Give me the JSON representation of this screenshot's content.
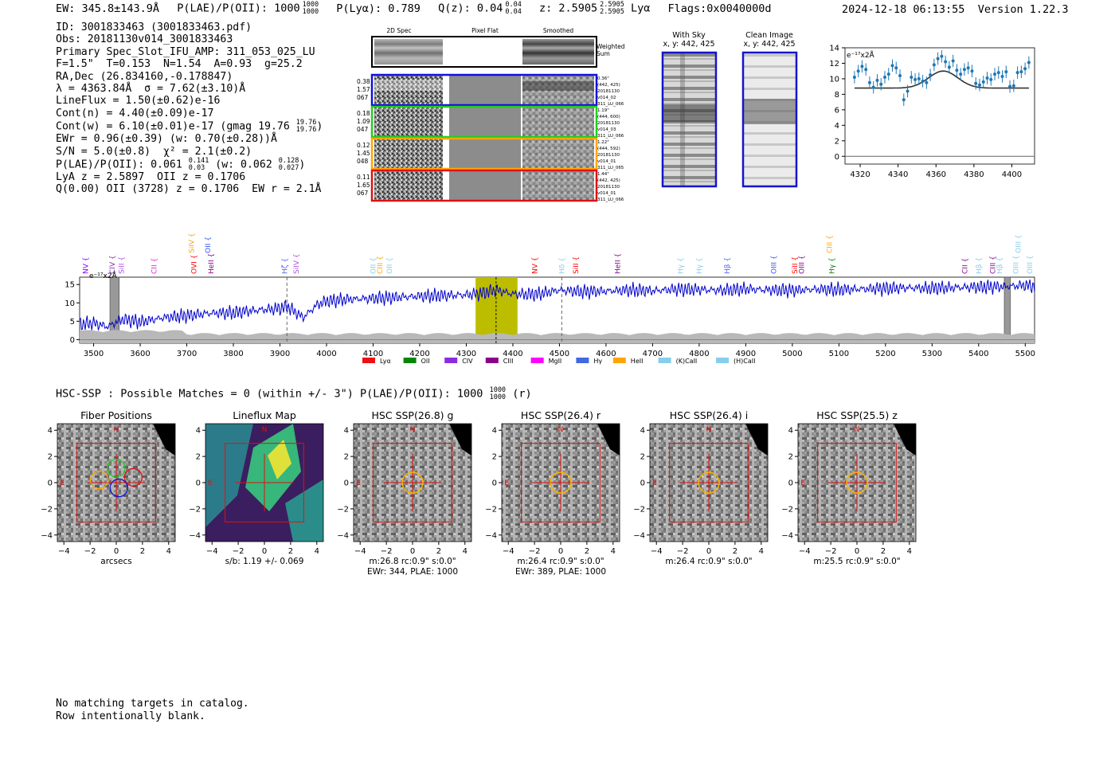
{
  "header": {
    "ew": "EW: 345.8±143.9Å",
    "plae": "P(LAE)/P(OII): 1000",
    "plae_hi": "1000",
    "plae_lo": "1000",
    "plya": "P(Lyα): 0.789",
    "qz": "Q(z): 0.04",
    "qz_hi": "0.04",
    "qz_lo": "0.04",
    "z": "z: 2.5905",
    "z_hi": "2.5905",
    "z_lo": "2.5905",
    "z_line": "Lyα",
    "flags": "Flags:0x0040000d",
    "timestamp": "2024-12-18 06:13:55",
    "version": "Version 1.22.3"
  },
  "info": {
    "id": "ID: 3001833463 (3001833463.pdf)",
    "obs": "Obs: 20181130v014_3001833463",
    "primary": "Primary Spec_Slot_IFU_AMP: 311_053_025_LU",
    "fit": "F=1.5\"  T=0.153  N=1.54  A=0.93  g=25.2",
    "radec": "RA,Dec (26.834160,-0.178847)",
    "lambda": "λ = 4363.84Å  σ = 7.62(±3.10)Å",
    "lineflux": "LineFlux = 1.50(±0.62)e-16",
    "contn": "Cont(n) = 4.40(±0.09)e-17",
    "contw": "Cont(w) = 6.10(±0.01)e-17 (gmag 19.76",
    "contw_hi": "19.76",
    "contw_lo": "19.76",
    "contw_end": ")",
    "ewr": "EWr = 0.96(±0.39) (w: 0.70(±0.28))Å",
    "sn": "S/N = 5.0(±0.8)  χ² = 2.1(±0.2)",
    "plae2": "P(LAE)/P(OII): 0.061",
    "plae2_hi": "0.141",
    "plae2_lo": "0.03",
    "plae2_w": "(w: 0.062",
    "plae2_w_hi": "0.128",
    "plae2_w_lo": "0.027",
    "plae2_end": ")",
    "lya": "LyA z = 2.5897  OII z = 0.1706",
    "q": "Q(0.00) OII (3728) z = 0.1706  EW r = 2.1Å"
  },
  "cutouts": {
    "col_titles": [
      "2D Spec",
      "Pixel Flat",
      "Smoothed"
    ],
    "weighted": [
      "Weighted",
      "Sum"
    ],
    "rows": [
      {
        "left": [
          "0.38",
          "1.57",
          "067"
        ],
        "right": [
          "0.36\"",
          "(442, 425)",
          "20181130",
          "v014_02",
          "311_LU_066"
        ],
        "color": "#1010dd"
      },
      {
        "left": [
          "0.18",
          "1.09",
          "047"
        ],
        "right": [
          "1.19\"",
          "(444, 600)",
          "20181130",
          "v014_03",
          "311_LU_066"
        ],
        "color": "#22cc22"
      },
      {
        "left": [
          "0.12",
          "1.45",
          "048"
        ],
        "right": [
          "1.22\"",
          "(444, 592)",
          "20181130",
          "v014_01",
          "311_LU_065"
        ],
        "color": "#ffa500"
      },
      {
        "left": [
          "0.11",
          "1.65",
          "067"
        ],
        "right": [
          "1.44\"",
          "(442, 425)",
          "20181130",
          "v014_01",
          "311_LU_066"
        ],
        "color": "#dd1111"
      }
    ]
  },
  "sky": {
    "with_sky": [
      "With Sky",
      "x, y: 442, 425"
    ],
    "clean": [
      "Clean Image",
      "x, y: 442, 425"
    ]
  },
  "zoom_chart": {
    "type": "line",
    "unit": "e⁻¹⁷x2Å",
    "xlim": [
      4312,
      4412
    ],
    "ylim": [
      -1,
      14
    ],
    "xticks": [
      4320,
      4340,
      4360,
      4380,
      4400
    ],
    "yticks": [
      0,
      2,
      4,
      6,
      8,
      10,
      12,
      14
    ],
    "data_x": [
      4317,
      4319,
      4321,
      4323,
      4325,
      4327,
      4329,
      4331,
      4333,
      4335,
      4337,
      4339,
      4341,
      4343,
      4345,
      4347,
      4349,
      4351,
      4353,
      4355,
      4357,
      4359,
      4361,
      4363,
      4365,
      4367,
      4369,
      4371,
      4373,
      4375,
      4377,
      4379,
      4381,
      4383,
      4385,
      4387,
      4389,
      4391,
      4393,
      4395,
      4397,
      4399,
      4401,
      4403,
      4405,
      4407,
      4409
    ],
    "data_y": [
      10.2,
      11.0,
      11.6,
      11.2,
      9.5,
      8.9,
      9.8,
      9.3,
      10.2,
      10.6,
      11.7,
      11.4,
      10.4,
      7.3,
      8.4,
      10.2,
      9.9,
      10.0,
      9.7,
      9.5,
      10.5,
      11.8,
      12.6,
      12.9,
      12.2,
      11.5,
      12.3,
      11.1,
      10.6,
      11.2,
      11.4,
      11.0,
      9.4,
      9.2,
      9.6,
      10.1,
      9.9,
      10.6,
      10.8,
      10.3,
      10.9,
      9.0,
      9.1,
      10.8,
      10.9,
      11.3,
      12.1
    ],
    "fit_center": 4363.84,
    "fit_sigma": 7.62,
    "fit_base": 8.8,
    "fit_amp": 2.2
  },
  "emission_labels": [
    {
      "name": "NV",
      "w": 3483,
      "c": "#8b00ff",
      "tier": 0
    },
    {
      "name": "CIV",
      "w": 3540,
      "c": "#8b2bb0",
      "tier": 0
    },
    {
      "name": "SiII",
      "w": 3560,
      "c": "#b04fe0",
      "tier": 0
    },
    {
      "name": "CII",
      "w": 3630,
      "c": "#dd22dd",
      "tier": 0
    },
    {
      "name": "SiIV",
      "w": 3710,
      "c": "#ffa500",
      "tier": 1
    },
    {
      "name": "OVI",
      "w": 3715,
      "c": "#ff0000",
      "tier": 0
    },
    {
      "name": "OII",
      "w": 3745,
      "c": "#3355ee",
      "tier": 1
    },
    {
      "name": "HeII",
      "w": 3752,
      "c": "#8b008b",
      "tier": 0
    },
    {
      "name": "Hζ",
      "w": 3910,
      "c": "#5566ee",
      "tier": 0
    },
    {
      "name": "SiIV",
      "w": 3935,
      "c": "#b04fe0",
      "tier": 0
    },
    {
      "name": "OII",
      "w": 4100,
      "c": "#87ceeb",
      "tier": 0
    },
    {
      "name": "CIII",
      "w": 4115,
      "c": "#ffa500",
      "tier": 0
    },
    {
      "name": "OII",
      "w": 4135,
      "c": "#87ceeb",
      "tier": 0
    },
    {
      "name": "NV",
      "w": 4447,
      "c": "#ff0000",
      "tier": 0
    },
    {
      "name": "Hδ",
      "w": 4505,
      "c": "#87ceeb",
      "tier": 0
    },
    {
      "name": "SiII",
      "w": 4535,
      "c": "#ff0000",
      "tier": 0
    },
    {
      "name": "HeII",
      "w": 4625,
      "c": "#8b008b",
      "tier": 0
    },
    {
      "name": "Hγ",
      "w": 4760,
      "c": "#87ceeb",
      "tier": 0
    },
    {
      "name": "Hγ",
      "w": 4800,
      "c": "#87ceeb",
      "tier": 0
    },
    {
      "name": "Hβ",
      "w": 4860,
      "c": "#5566ee",
      "tier": 0
    },
    {
      "name": "OIII",
      "w": 4960,
      "c": "#3355ee",
      "tier": 0
    },
    {
      "name": "SiII",
      "w": 5005,
      "c": "#ff0000",
      "tier": 0
    },
    {
      "name": "OIII",
      "w": 5020,
      "c": "#8b008b",
      "tier": 0
    },
    {
      "name": "CIII",
      "w": 5080,
      "c": "#ffa500",
      "tier": 1
    },
    {
      "name": "Hγ",
      "w": 5085,
      "c": "#008800",
      "tier": 0
    },
    {
      "name": "CII",
      "w": 5370,
      "c": "#8b008b",
      "tier": 0
    },
    {
      "name": "Hβ",
      "w": 5400,
      "c": "#87ceeb",
      "tier": 0
    },
    {
      "name": "CIII",
      "w": 5430,
      "c": "#8b008b",
      "tier": 0
    },
    {
      "name": "Hβ",
      "w": 5445,
      "c": "#87ceeb",
      "tier": 0
    },
    {
      "name": "OIII",
      "w": 5480,
      "c": "#87ceeb",
      "tier": 0
    },
    {
      "name": "OIII",
      "w": 5485,
      "c": "#87ceeb",
      "tier": 1
    },
    {
      "name": "OIII",
      "w": 5510,
      "c": "#87ceeb",
      "tier": 0
    }
  ],
  "spectrum_chart": {
    "type": "line",
    "unit": "e⁻¹⁷x2Å",
    "xlim": [
      3470,
      5520
    ],
    "ylim": [
      -1,
      17
    ],
    "xticks": [
      3500,
      3600,
      3700,
      3800,
      3900,
      4000,
      4100,
      4200,
      4300,
      4400,
      4500,
      4600,
      4700,
      4800,
      4900,
      5000,
      5100,
      5200,
      5300,
      5400,
      5500
    ],
    "yticks": [
      0,
      5,
      10,
      15
    ],
    "knots_x": [
      3470,
      3500,
      3530,
      3560,
      3600,
      3650,
      3700,
      3750,
      3800,
      3850,
      3900,
      3915,
      3950,
      3980,
      4000,
      4050,
      4100,
      4150,
      4200,
      4250,
      4300,
      4330,
      4364,
      4400,
      4450,
      4500,
      4550,
      4600,
      4650,
      4700,
      4750,
      4800,
      4850,
      4900,
      4950,
      5000,
      5050,
      5100,
      5150,
      5200,
      5250,
      5300,
      5350,
      5400,
      5450,
      5480,
      5500,
      5520
    ],
    "knots_y": [
      4.2,
      4.5,
      3.5,
      5.5,
      4.8,
      6.0,
      6.5,
      7.2,
      7.3,
      8.0,
      8.5,
      9.0,
      6.0,
      9.5,
      10.5,
      11.0,
      11.2,
      11.5,
      11.8,
      12.0,
      12.2,
      12.5,
      13.5,
      12.4,
      12.3,
      13.5,
      13.0,
      13.2,
      13.5,
      13.3,
      13.7,
      13.6,
      13.4,
      13.8,
      13.5,
      13.4,
      13.7,
      13.6,
      13.8,
      13.9,
      14.1,
      14.0,
      14.2,
      14.3,
      14.4,
      14.6,
      14.8,
      14.5
    ],
    "highlight": [
      4320,
      4410
    ],
    "line_marker": 4364,
    "dashed_markers": [
      3915,
      4505
    ],
    "masked_bands": [
      [
        3535,
        3555
      ],
      [
        5455,
        5468
      ]
    ],
    "legend": [
      {
        "label": "Lyα",
        "c": "#ee1111"
      },
      {
        "label": "OII",
        "c": "#008800"
      },
      {
        "label": "CIV",
        "c": "#8b2be2"
      },
      {
        "label": "CIII",
        "c": "#8b008b"
      },
      {
        "label": "MgII",
        "c": "#ff00ff"
      },
      {
        "label": "Hγ",
        "c": "#4169e1"
      },
      {
        "label": "HeII",
        "c": "#ffa500"
      },
      {
        "label": "(K)CaII",
        "c": "#87ceeb"
      },
      {
        "label": "(H)CaII",
        "c": "#87ceeb"
      }
    ]
  },
  "hsc": {
    "line": "HSC-SSP : Possible Matches = 0 (within +/- 3\")  P(LAE)/P(OII): 1000",
    "frac_hi": "1000",
    "frac_lo": "1000",
    "band": "(r)"
  },
  "panels": [
    {
      "title": "Fiber Positions",
      "cap1": "arcsecs",
      "cap2": "",
      "kind": "fiber"
    },
    {
      "title": "Lineflux Map",
      "cap1": "s/b: 1.19 +/- 0.069",
      "cap2": "",
      "kind": "flux"
    },
    {
      "title": "HSC SSP(26.8) g",
      "cap1": "m:26.8 rc:0.9\"  s:0.0\"",
      "cap2": "EWr: 344, PLAE: 1000",
      "kind": "g"
    },
    {
      "title": "HSC SSP(26.4) r",
      "cap1": "m:26.4 rc:0.9\"  s:0.0\"",
      "cap2": "EWr: 389, PLAE: 1000",
      "kind": "r"
    },
    {
      "title": "HSC SSP(26.4) i",
      "cap1": "m:26.4 rc:0.9\"  s:0.0\"",
      "cap2": "",
      "kind": "i"
    },
    {
      "title": "HSC SSP(25.5) z",
      "cap1": "m:25.5 rc:0.9\"  s:0.0\"",
      "cap2": "",
      "kind": "z"
    }
  ],
  "panel_axes": {
    "ticks": [
      "−4",
      "−2",
      "0",
      "2",
      "4"
    ],
    "values": [
      -4,
      -2,
      0,
      2,
      4
    ],
    "north": "N",
    "east": "E"
  },
  "catalog": {
    "line1": "No matching targets in catalog.",
    "line2": "Row intentionally blank."
  }
}
